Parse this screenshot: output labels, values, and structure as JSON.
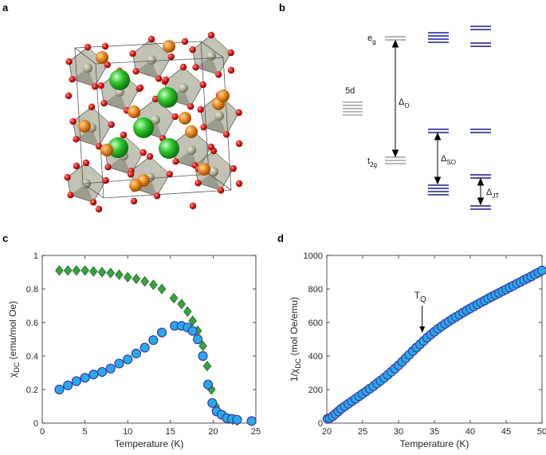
{
  "panels": {
    "a": {
      "letter": "a"
    },
    "b": {
      "letter": "b",
      "labels": {
        "eg": "e",
        "eg_sub": "g",
        "t2g": "t",
        "t2g_sub": "2g",
        "d5": "5d",
        "delta_o": "Δ",
        "delta_o_sub": "O",
        "delta_so": "Δ",
        "delta_so_sub": "SO",
        "delta_jt": "Δ",
        "delta_jt_sub": "JT"
      },
      "colors": {
        "gray_levels": "#8c8c8c",
        "blue_levels": "#1a1a8c"
      }
    },
    "c": {
      "letter": "c"
    },
    "d": {
      "letter": "d"
    }
  },
  "chart_data": [
    {
      "panel": "c",
      "type": "scatter",
      "xlabel": "Temperature (K)",
      "ylabel": "χ",
      "ylabel_sub": "DC",
      "ylabel_unit": " (emu/mol Oe)",
      "xlim": [
        0,
        25
      ],
      "ylim": [
        0,
        1
      ],
      "xticks": [
        0,
        5,
        10,
        15,
        20,
        25
      ],
      "yticks": [
        0,
        0.2,
        0.4,
        0.6,
        0.8,
        1
      ],
      "ytick_labels": [
        "0",
        "0.2",
        "0.4",
        "0.6",
        "0.8",
        "1"
      ],
      "series": [
        {
          "marker": "diamond",
          "color": "#3aa040",
          "edge": "#1f6b25",
          "x": [
            2,
            3,
            4,
            5,
            6,
            7,
            8,
            9,
            10,
            11,
            12,
            13,
            14,
            15.4,
            16.3,
            17,
            17.6,
            18.2,
            18.8,
            19.3,
            19.8,
            20.3,
            20.8,
            21.3,
            21.8,
            22.3,
            22.8
          ],
          "y": [
            0.91,
            0.91,
            0.91,
            0.91,
            0.905,
            0.9,
            0.895,
            0.885,
            0.87,
            0.86,
            0.845,
            0.825,
            0.8,
            0.745,
            0.71,
            0.665,
            0.61,
            0.55,
            0.46,
            0.34,
            0.2,
            0.1,
            0.055,
            0.035,
            0.025,
            0.02,
            0.015
          ]
        },
        {
          "marker": "circle",
          "color": "#29a9e5",
          "edge": "#3b3ba8",
          "x": [
            2,
            3,
            4,
            5,
            6,
            7,
            8,
            9,
            10,
            11,
            12,
            13,
            14,
            15.5,
            16.3,
            17,
            17.6,
            18.2,
            18.8,
            19.4,
            19.9,
            20.4,
            21,
            21.6,
            22.2,
            22.8,
            24.5
          ],
          "y": [
            0.2,
            0.225,
            0.25,
            0.27,
            0.29,
            0.305,
            0.325,
            0.355,
            0.38,
            0.415,
            0.45,
            0.495,
            0.54,
            0.58,
            0.58,
            0.57,
            0.55,
            0.5,
            0.4,
            0.23,
            0.12,
            0.07,
            0.05,
            0.03,
            0.025,
            0.02,
            0.012
          ]
        }
      ]
    },
    {
      "panel": "d",
      "type": "scatter",
      "xlabel": "Temperature (K)",
      "ylabel": "1/χ",
      "ylabel_sub": "DC",
      "ylabel_unit": " (mol Oe/emu)",
      "xlim": [
        20,
        50
      ],
      "ylim": [
        0,
        1000
      ],
      "xticks": [
        20,
        25,
        30,
        35,
        40,
        45,
        50
      ],
      "yticks": [
        0,
        200,
        400,
        600,
        800,
        1000
      ],
      "annotation": {
        "text": "T",
        "sub": "Q",
        "x": 33.3,
        "y": 510
      },
      "series": [
        {
          "marker": "circle",
          "color": "#29a9e5",
          "edge": "#3b3ba8",
          "x": [
            20.1,
            20.4,
            20.8,
            21.2,
            21.6,
            22,
            22.5,
            23,
            23.5,
            24,
            24.5,
            25,
            25.5,
            26,
            26.5,
            27,
            27.5,
            28,
            28.5,
            29,
            29.5,
            30,
            30.5,
            31,
            31.5,
            32,
            32.5,
            33,
            33.5,
            34,
            34.5,
            35,
            35.5,
            36,
            36.5,
            37,
            37.5,
            38,
            38.5,
            39,
            39.5,
            40,
            40.5,
            41,
            41.5,
            42,
            42.5,
            43,
            43.5,
            44,
            44.5,
            45,
            45.5,
            46,
            46.5,
            47,
            47.5,
            48,
            48.5,
            49,
            49.5,
            50
          ],
          "y": [
            25,
            30,
            40,
            55,
            70,
            85,
            100,
            115,
            130,
            145,
            160,
            175,
            190,
            205,
            220,
            237,
            253,
            270,
            288,
            306,
            325,
            345,
            366,
            387,
            408,
            430,
            450,
            470,
            490,
            510,
            528,
            545,
            562,
            577,
            592,
            606,
            620,
            633,
            646,
            659,
            672,
            684,
            696,
            708,
            720,
            731,
            743,
            754,
            765,
            776,
            787,
            798,
            809,
            820,
            831,
            842,
            853,
            864,
            875,
            887,
            898,
            910
          ]
        }
      ]
    }
  ]
}
